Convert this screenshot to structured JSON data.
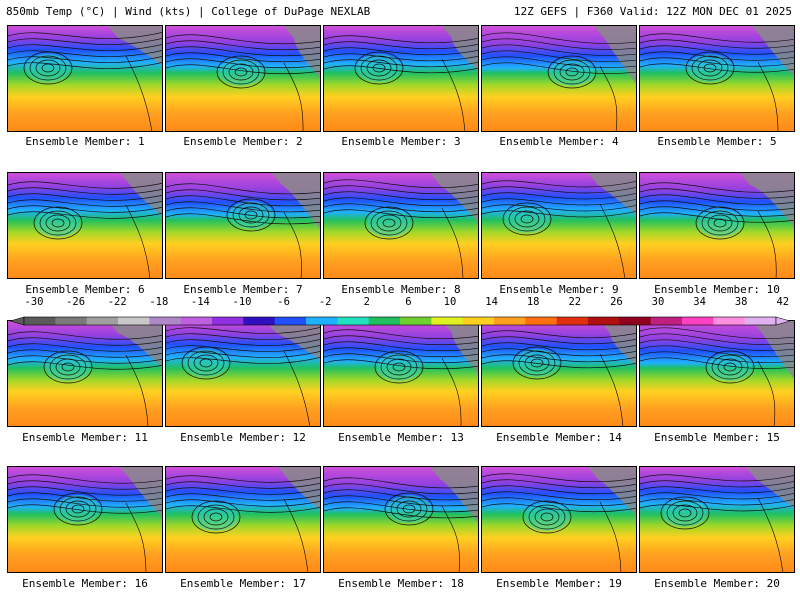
{
  "header": {
    "left_title": "850mb Temp (°C) | Wind (kts) | College of DuPage NEXLAB",
    "right_title": "12Z GEFS | F360 Valid: 12Z MON DEC 01 2025"
  },
  "colorbar": {
    "labels": [
      "-30",
      "-26",
      "-22",
      "-18",
      "-14",
      "-10",
      "-6",
      "-2",
      "2",
      "6",
      "10",
      "14",
      "18",
      "22",
      "26",
      "30",
      "34",
      "38",
      "42"
    ],
    "colors": [
      "#5a5a5a",
      "#7a7a7a",
      "#a0a0a0",
      "#c8c8c8",
      "#b088c8",
      "#c060e0",
      "#9030e0",
      "#3010c0",
      "#2050ff",
      "#20b0ff",
      "#20e0c0",
      "#20c060",
      "#70d030",
      "#e0f020",
      "#ffd020",
      "#ffa020",
      "#ff7010",
      "#e03010",
      "#b01010",
      "#900020",
      "#c02080",
      "#ff40c0",
      "#ff90e0",
      "#e0b0f0"
    ]
  },
  "members": [
    {
      "label": "Ensemble Member: 1"
    },
    {
      "label": "Ensemble Member: 2"
    },
    {
      "label": "Ensemble Member: 3"
    },
    {
      "label": "Ensemble Member: 4"
    },
    {
      "label": "Ensemble Member: 5"
    },
    {
      "label": "Ensemble Member: 6"
    },
    {
      "label": "Ensemble Member: 7"
    },
    {
      "label": "Ensemble Member: 8"
    },
    {
      "label": "Ensemble Member: 9"
    },
    {
      "label": "Ensemble Member: 10"
    },
    {
      "label": "Ensemble Member: 11"
    },
    {
      "label": "Ensemble Member: 12"
    },
    {
      "label": "Ensemble Member: 13"
    },
    {
      "label": "Ensemble Member: 14"
    },
    {
      "label": "Ensemble Member: 15"
    },
    {
      "label": "Ensemble Member: 16"
    },
    {
      "label": "Ensemble Member: 17"
    },
    {
      "label": "Ensemble Member: 18"
    },
    {
      "label": "Ensemble Member: 19"
    },
    {
      "label": "Ensemble Member: 20"
    }
  ]
}
